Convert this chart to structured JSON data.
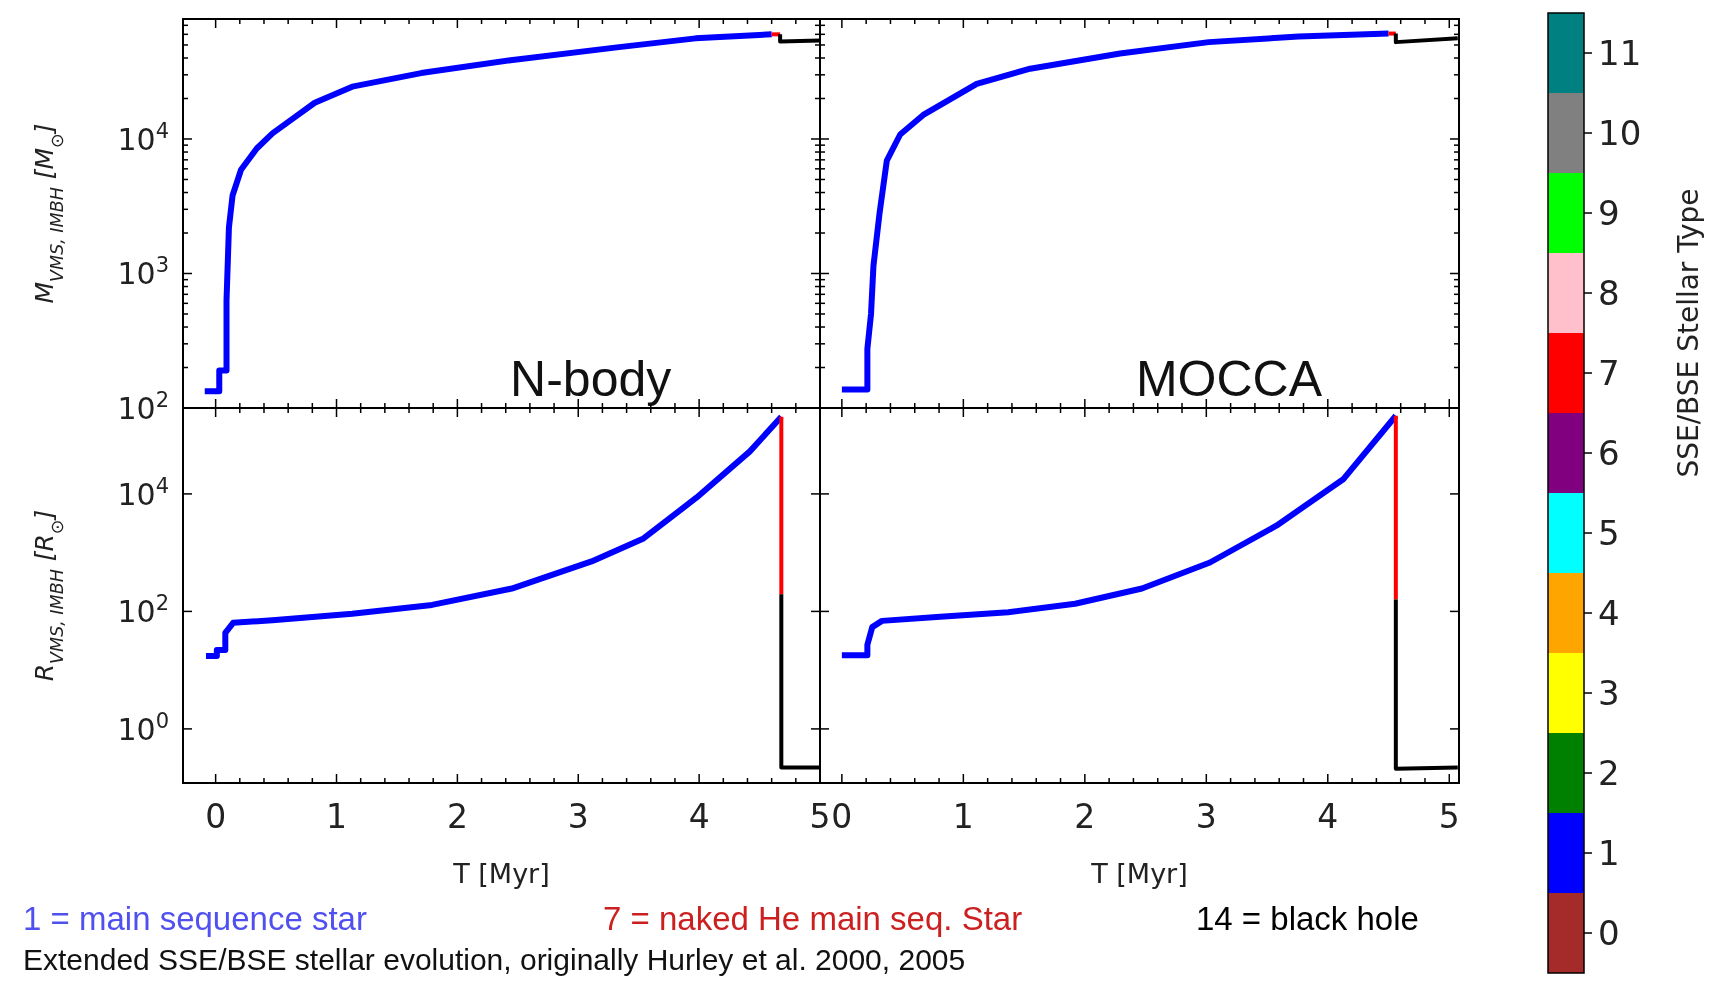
{
  "chart_data": [
    {
      "type": "line",
      "ylabel": "M$_{VMS, IMBH}$ [M$_{⊙}$]",
      "log": "y",
      "xlim": [
        -0.27,
        5
      ],
      "ylim": [
        100,
        78000
      ],
      "tick_labels": "y",
      "annotations": [
        "N-body"
      ],
      "xticks": [
        {
          "value": 0,
          "label": null
        },
        {
          "value": 0.2,
          "label": null
        },
        {
          "value": 0.4,
          "label": null
        },
        {
          "value": 0.6,
          "label": null
        },
        {
          "value": 0.8,
          "label": null
        },
        {
          "value": 1,
          "label": null
        },
        {
          "value": 1.2,
          "label": null
        },
        {
          "value": 1.4,
          "label": null
        },
        {
          "value": 1.6,
          "label": null
        },
        {
          "value": 1.8,
          "label": null
        },
        {
          "value": 2,
          "label": null
        },
        {
          "value": 2.2,
          "label": null
        },
        {
          "value": 2.4,
          "label": null
        },
        {
          "value": 2.6,
          "label": null
        },
        {
          "value": 2.8,
          "label": null
        },
        {
          "value": 3,
          "label": null
        },
        {
          "value": 3.2,
          "label": null
        },
        {
          "value": 3.4,
          "label": null
        },
        {
          "value": 3.6,
          "label": null
        },
        {
          "value": 3.8,
          "label": null
        },
        {
          "value": 4,
          "label": null
        },
        {
          "value": 4.2,
          "label": null
        },
        {
          "value": 4.4,
          "label": null
        },
        {
          "value": 4.6,
          "label": null
        },
        {
          "value": 4.8,
          "label": null
        },
        {
          "value": 5,
          "label": null
        }
      ],
      "yticks": [
        {
          "value": 100,
          "label": "10$^{2}$"
        },
        {
          "value": 200,
          "label": null
        },
        {
          "value": 300,
          "label": null
        },
        {
          "value": 400,
          "label": null
        },
        {
          "value": 500,
          "label": null
        },
        {
          "value": 600,
          "label": null
        },
        {
          "value": 700,
          "label": null
        },
        {
          "value": 800,
          "label": null
        },
        {
          "value": 900,
          "label": null
        },
        {
          "value": 1000,
          "label": "10$^{3}$"
        },
        {
          "value": 2000,
          "label": null
        },
        {
          "value": 3000,
          "label": null
        },
        {
          "value": 4000,
          "label": null
        },
        {
          "value": 5000,
          "label": null
        },
        {
          "value": 6000,
          "label": null
        },
        {
          "value": 7000,
          "label": null
        },
        {
          "value": 8000,
          "label": null
        },
        {
          "value": 9000,
          "label": null
        },
        {
          "value": 10000,
          "label": "10$^{4}$"
        },
        {
          "value": 20000,
          "label": null
        },
        {
          "value": 30000,
          "label": null
        },
        {
          "value": 40000,
          "label": null
        },
        {
          "value": 50000,
          "label": null
        },
        {
          "value": 60000,
          "label": null
        },
        {
          "value": 70000,
          "label": null
        }
      ],
      "series": [
        {
          "color": "#0000ff",
          "x": [
            -0.09,
            0.03,
            0.03,
            0.09,
            0.09,
            0.11,
            0.14,
            0.21,
            0.34,
            0.47,
            0.65,
            0.82,
            1.13,
            1.7,
            2.44,
            3.32,
            3.97,
            4.6
          ],
          "values": [
            133,
            133,
            190,
            190,
            630,
            2200,
            3800,
            5900,
            8500,
            11000,
            14400,
            18600,
            24500,
            30900,
            38500,
            48000,
            56000,
            60000
          ]
        },
        {
          "color": "#ff0000",
          "x": [
            4.6,
            4.67
          ],
          "values": [
            60000,
            60000
          ]
        },
        {
          "color": "#000000",
          "x": [
            4.67,
            4.67,
            5.0
          ],
          "values": [
            60000,
            53000,
            54000
          ]
        }
      ]
    },
    {
      "type": "line",
      "log": "y",
      "xlim": [
        -0.18,
        5.08
      ],
      "ylim": [
        100,
        78000
      ],
      "tick_labels": false,
      "annotations": [
        "MOCCA"
      ],
      "xticks": [
        {
          "value": 0,
          "label": null
        },
        {
          "value": 0.2,
          "label": null
        },
        {
          "value": 0.4,
          "label": null
        },
        {
          "value": 0.6,
          "label": null
        },
        {
          "value": 0.8,
          "label": null
        },
        {
          "value": 1,
          "label": null
        },
        {
          "value": 1.2,
          "label": null
        },
        {
          "value": 1.4,
          "label": null
        },
        {
          "value": 1.6,
          "label": null
        },
        {
          "value": 1.8,
          "label": null
        },
        {
          "value": 2,
          "label": null
        },
        {
          "value": 2.2,
          "label": null
        },
        {
          "value": 2.4,
          "label": null
        },
        {
          "value": 2.6,
          "label": null
        },
        {
          "value": 2.8,
          "label": null
        },
        {
          "value": 3,
          "label": null
        },
        {
          "value": 3.2,
          "label": null
        },
        {
          "value": 3.4,
          "label": null
        },
        {
          "value": 3.6,
          "label": null
        },
        {
          "value": 3.8,
          "label": null
        },
        {
          "value": 4,
          "label": null
        },
        {
          "value": 4.2,
          "label": null
        },
        {
          "value": 4.4,
          "label": null
        },
        {
          "value": 4.6,
          "label": null
        },
        {
          "value": 4.8,
          "label": null
        },
        {
          "value": 5,
          "label": null
        }
      ],
      "yticks": [
        {
          "value": 100,
          "label": null
        },
        {
          "value": 200,
          "label": null
        },
        {
          "value": 300,
          "label": null
        },
        {
          "value": 400,
          "label": null
        },
        {
          "value": 500,
          "label": null
        },
        {
          "value": 600,
          "label": null
        },
        {
          "value": 700,
          "label": null
        },
        {
          "value": 800,
          "label": null
        },
        {
          "value": 900,
          "label": null
        },
        {
          "value": 1000,
          "label": null
        },
        {
          "value": 2000,
          "label": null
        },
        {
          "value": 3000,
          "label": null
        },
        {
          "value": 4000,
          "label": null
        },
        {
          "value": 5000,
          "label": null
        },
        {
          "value": 6000,
          "label": null
        },
        {
          "value": 7000,
          "label": null
        },
        {
          "value": 8000,
          "label": null
        },
        {
          "value": 9000,
          "label": null
        },
        {
          "value": 10000,
          "label": null
        },
        {
          "value": 20000,
          "label": null
        },
        {
          "value": 30000,
          "label": null
        },
        {
          "value": 40000,
          "label": null
        },
        {
          "value": 50000,
          "label": null
        },
        {
          "value": 60000,
          "label": null
        },
        {
          "value": 70000,
          "label": null
        }
      ],
      "series": [
        {
          "color": "#0000ff",
          "x": [
            0.0,
            0.21,
            0.21,
            0.24,
            0.26,
            0.31,
            0.37,
            0.48,
            0.67,
            1.11,
            1.55,
            2.29,
            3.02,
            3.76,
            4.5
          ],
          "values": [
            137,
            137,
            275,
            500,
            1140,
            2800,
            6900,
            10800,
            15100,
            25700,
            33300,
            43200,
            52500,
            57800,
            60800
          ]
        },
        {
          "color": "#ff0000",
          "x": [
            4.5,
            4.56
          ],
          "values": [
            60800,
            60800
          ]
        },
        {
          "color": "#000000",
          "x": [
            4.56,
            4.56,
            5.07
          ],
          "values": [
            60800,
            52500,
            56000
          ]
        }
      ]
    },
    {
      "type": "line",
      "ylabel": "R$_{VMS, IMBH}$ [R$_{⊙}$]",
      "xlabel": "T [Myr]",
      "log": "y",
      "xlim": [
        -0.27,
        5
      ],
      "ylim": [
        0.12,
        290000
      ],
      "annotations": [
        "1 = main sequence star",
        "Extended SSE/BSE stellar evolution, originally Hurley et al. 2000, 2005"
      ],
      "xticks": [
        0,
        {
          "value": 0.2,
          "label": null
        },
        {
          "value": 0.4,
          "label": null
        },
        {
          "value": 0.6,
          "label": null
        },
        {
          "value": 0.8,
          "label": null
        },
        1,
        {
          "value": 1.2,
          "label": null
        },
        {
          "value": 1.4,
          "label": null
        },
        {
          "value": 1.6,
          "label": null
        },
        {
          "value": 1.8,
          "label": null
        },
        2,
        {
          "value": 2.2,
          "label": null
        },
        {
          "value": 2.4,
          "label": null
        },
        {
          "value": 2.6,
          "label": null
        },
        {
          "value": 2.8,
          "label": null
        },
        3,
        {
          "value": 3.2,
          "label": null
        },
        {
          "value": 3.4,
          "label": null
        },
        {
          "value": 3.6,
          "label": null
        },
        {
          "value": 3.8,
          "label": null
        },
        4,
        {
          "value": 4.2,
          "label": null
        },
        {
          "value": 4.4,
          "label": null
        },
        {
          "value": 4.6,
          "label": null
        },
        {
          "value": 4.8,
          "label": null
        },
        5
      ],
      "yticks": [
        {
          "value": 1,
          "label": "10$^{0}$"
        },
        {
          "value": 100,
          "label": "10$^{2}$"
        },
        {
          "value": 10000,
          "label": "10$^{4}$"
        }
      ],
      "series": [
        {
          "color": "#0000ff",
          "x": [
            -0.08,
            0.01,
            0.01,
            0.08,
            0.08,
            0.145,
            0.47,
            1.13,
            1.79,
            2.45,
            3.11,
            3.54,
            3.98,
            4.42,
            4.68
          ],
          "values": [
            17.5,
            17.5,
            22,
            22,
            43,
            64,
            71,
            91,
            129,
            245,
            710,
            1750,
            8700,
            53000,
            205000
          ]
        },
        {
          "color": "#ff0000",
          "x": [
            4.68,
            4.68
          ],
          "values": [
            205000,
            195
          ]
        },
        {
          "color": "#000000",
          "x": [
            4.68,
            4.68,
            5.0
          ],
          "values": [
            195,
            0.22,
            0.22
          ]
        }
      ]
    },
    {
      "type": "line",
      "xlabel": "T [Myr]",
      "log": "y",
      "xlim": [
        -0.18,
        5.08
      ],
      "ylim": [
        0.12,
        290000
      ],
      "tick_labels": "x",
      "annotations": [
        "7 = naked He main seq. Star",
        "14 = black hole"
      ],
      "clabel": "SSE/BSE Stellar Type",
      "clim": [
        -0.5,
        11.5
      ],
      "cticks": [
        0,
        1,
        2,
        3,
        4,
        5,
        6,
        7,
        8,
        9,
        10,
        11
      ],
      "colors": [
        "#a52a2a",
        "#0000ff",
        "#008000",
        "#ffff00",
        "#ffa500",
        "#00ffff",
        "#800080",
        "#ff0000",
        "#ffc0cb",
        "#00ff00",
        "#808080",
        "#008080"
      ],
      "xticks": [
        0,
        {
          "value": 0.2,
          "label": null
        },
        {
          "value": 0.4,
          "label": null
        },
        {
          "value": 0.6,
          "label": null
        },
        {
          "value": 0.8,
          "label": null
        },
        1,
        {
          "value": 1.2,
          "label": null
        },
        {
          "value": 1.4,
          "label": null
        },
        {
          "value": 1.6,
          "label": null
        },
        {
          "value": 1.8,
          "label": null
        },
        2,
        {
          "value": 2.2,
          "label": null
        },
        {
          "value": 2.4,
          "label": null
        },
        {
          "value": 2.6,
          "label": null
        },
        {
          "value": 2.8,
          "label": null
        },
        3,
        {
          "value": 3.2,
          "label": null
        },
        {
          "value": 3.4,
          "label": null
        },
        {
          "value": 3.6,
          "label": null
        },
        {
          "value": 3.8,
          "label": null
        },
        4,
        {
          "value": 4.2,
          "label": null
        },
        {
          "value": 4.4,
          "label": null
        },
        {
          "value": 4.6,
          "label": null
        },
        {
          "value": 4.8,
          "label": null
        },
        5
      ],
      "yticks": [
        {
          "value": 1,
          "label": null
        },
        {
          "value": 100,
          "label": null
        },
        {
          "value": 10000,
          "label": null
        }
      ],
      "series": [
        {
          "color": "#0000ff",
          "x": [
            0.0,
            0.21,
            0.21,
            0.25,
            0.33,
            0.81,
            1.37,
            1.92,
            2.47,
            3.03,
            3.58,
            4.13,
            4.56
          ],
          "values": [
            18,
            18,
            27,
            54,
            69,
            81,
            97,
            135,
            245,
            680,
            2900,
            18000,
            214000
          ]
        },
        {
          "color": "#ff0000",
          "x": [
            4.56,
            4.56
          ],
          "values": [
            214000,
            160
          ]
        },
        {
          "color": "#000000",
          "x": [
            4.56,
            4.56,
            5.07
          ],
          "values": [
            160,
            0.21,
            0.22
          ]
        }
      ]
    }
  ]
}
